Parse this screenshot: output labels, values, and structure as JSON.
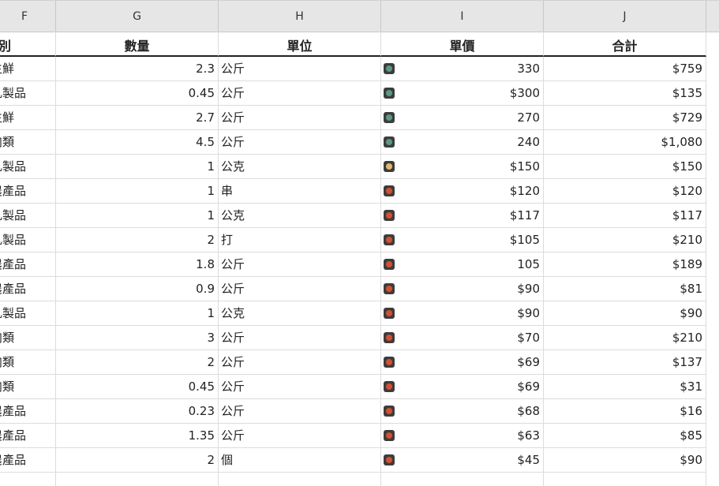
{
  "columns": [
    "F",
    "G",
    "H",
    "I",
    "J"
  ],
  "headers": {
    "F": "類別",
    "G": "數量",
    "H": "單位",
    "I": "單價",
    "J": "合計"
  },
  "colors": {
    "green": "#5b9a7f",
    "amber": "#e2b76f",
    "red": "#d4502f"
  },
  "rows": [
    {
      "category": "生鮮",
      "qty": "2.3",
      "unit": "公斤",
      "price": "330",
      "status": "green",
      "total": "$759"
    },
    {
      "category": "乳製品",
      "qty": "0.45",
      "unit": "公斤",
      "price": "$300",
      "status": "green",
      "total": "$135"
    },
    {
      "category": "生鮮",
      "qty": "2.7",
      "unit": "公斤",
      "price": "270",
      "status": "green",
      "total": "$729"
    },
    {
      "category": "肉類",
      "qty": "4.5",
      "unit": "公斤",
      "price": "240",
      "status": "green",
      "total": "$1,080"
    },
    {
      "category": "乳製品",
      "qty": "1",
      "unit": "公克",
      "price": "$150",
      "status": "amber",
      "total": "$150"
    },
    {
      "category": "農產品",
      "qty": "1",
      "unit": "串",
      "price": "$120",
      "status": "red",
      "total": "$120"
    },
    {
      "category": "乳製品",
      "qty": "1",
      "unit": "公克",
      "price": "$117",
      "status": "red",
      "total": "$117"
    },
    {
      "category": "乳製品",
      "qty": "2",
      "unit": "打",
      "price": "$105",
      "status": "red",
      "total": "$210"
    },
    {
      "category": "農產品",
      "qty": "1.8",
      "unit": "公斤",
      "price": "105",
      "status": "red",
      "total": "$189"
    },
    {
      "category": "農產品",
      "qty": "0.9",
      "unit": "公斤",
      "price": "$90",
      "status": "red",
      "total": "$81"
    },
    {
      "category": "乳製品",
      "qty": "1",
      "unit": "公克",
      "price": "$90",
      "status": "red",
      "total": "$90"
    },
    {
      "category": "肉類",
      "qty": "3",
      "unit": "公斤",
      "price": "$70",
      "status": "red",
      "total": "$210"
    },
    {
      "category": "肉類",
      "qty": "2",
      "unit": "公斤",
      "price": "$69",
      "status": "red",
      "total": "$137"
    },
    {
      "category": "肉類",
      "qty": "0.45",
      "unit": "公斤",
      "price": "$69",
      "status": "red",
      "total": "$31"
    },
    {
      "category": "農產品",
      "qty": "0.23",
      "unit": "公斤",
      "price": "$68",
      "status": "red",
      "total": "$16"
    },
    {
      "category": "農產品",
      "qty": "1.35",
      "unit": "公斤",
      "price": "$63",
      "status": "red",
      "total": "$85"
    },
    {
      "category": "農產品",
      "qty": "2",
      "unit": "個",
      "price": "$45",
      "status": "red",
      "total": "$90"
    }
  ]
}
